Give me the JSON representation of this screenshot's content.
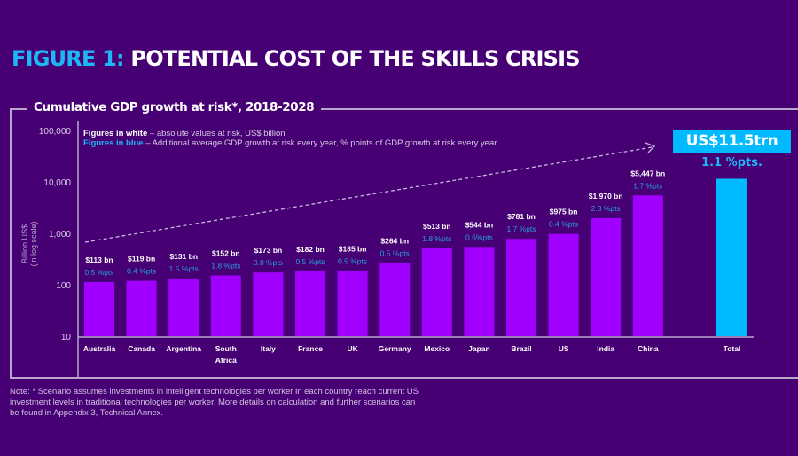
{
  "header": {
    "figure_label": "FIGURE 1:",
    "title": "POTENTIAL COST OF THE SKILLS CRISIS"
  },
  "legend": {
    "white_key": "Figures in white",
    "white_desc": " – absolute values at risk, US$ billion",
    "blue_key": "Figures in blue",
    "blue_desc": " – Additional average GDP growth at risk every year, % points of GDP growth at risk every year"
  },
  "total_callout": {
    "value": "US$11.5trn",
    "pts": "1.1 %pts."
  },
  "note": "Note: * Scenario assumes investments in intelligent technologies per worker in each country reach current US investment levels in traditional technologies per worker. More details on calculation and further scenarios can be found in Appendix 3, Technical Annex.",
  "colors": {
    "background": "#460073",
    "bar": "#a100ff",
    "total_bar": "#00baff",
    "blue_text": "#1fb6f5",
    "axis": "#b7a7c9"
  },
  "chart_data": {
    "type": "bar",
    "title": "Cumulative GDP growth at risk*, 2018-2028",
    "ylabel": "Billion US$ (in log scale)",
    "xlabel": "",
    "yscale": "log",
    "ylim": [
      10,
      100000
    ],
    "yticks": [
      "100,000",
      "10,000",
      "1,000",
      "100",
      "10"
    ],
    "ytick_values": [
      100000,
      10000,
      1000,
      100,
      10
    ],
    "categories": [
      "Australia",
      "Canada",
      "Argentina",
      "South Africa",
      "Italy",
      "France",
      "UK",
      "Germany",
      "Mexico",
      "Japan",
      "Brazil",
      "US",
      "India",
      "China",
      "Total"
    ],
    "values": [
      113,
      119,
      131,
      152,
      173,
      182,
      185,
      264,
      513,
      544,
      781,
      975,
      1970,
      5447,
      11500
    ],
    "value_labels": [
      "$113 bn",
      "$119 bn",
      "$131 bn",
      "$152 bn",
      "$173 bn",
      "$182 bn",
      "$185 bn",
      "$264 bn",
      "$513 bn",
      "$544 bn",
      "$781 bn",
      "$975 bn",
      "$1,970 bn",
      "$5,447 bn",
      ""
    ],
    "pts_labels": [
      "0.5 %pts",
      "0.4 %pts",
      "1.5 %pts",
      "1.8 %pts",
      "0.8 %pts",
      "0.5 %pts",
      "0.5 %pts",
      "0.5 %pts",
      "1.8 %pts",
      "0.6%pts",
      "1.7 %pts",
      "0.4 %pts",
      "2.3 %pts",
      "1.7 %pts",
      ""
    ],
    "pts_values": [
      0.5,
      0.4,
      1.5,
      1.8,
      0.8,
      0.5,
      0.5,
      0.5,
      1.8,
      0.6,
      1.7,
      0.4,
      2.3,
      1.7,
      1.1
    ],
    "grid": false,
    "annotation": "dashed trend arrow rising from Australia toward Total"
  }
}
